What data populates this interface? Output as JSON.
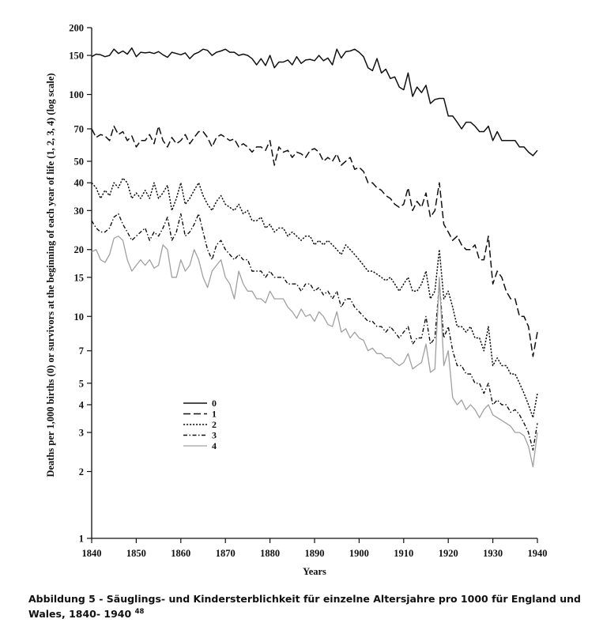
{
  "chart_data": {
    "type": "line",
    "xlabel": "Years",
    "ylabel": "Deaths per 1,000 births (0) or survivors at the beginning of each year of life (1, 2, 3, 4) (log scale)",
    "yscale": "log",
    "xlim": [
      1840,
      1940
    ],
    "ylim": [
      1,
      200
    ],
    "x_ticks": [
      "1840",
      "1850",
      "1860",
      "1870",
      "1880",
      "1890",
      "1900",
      "1910",
      "1920",
      "1930",
      "1940"
    ],
    "y_ticks": [
      "1",
      "2",
      "3",
      "4",
      "5",
      "7",
      "10",
      "15",
      "20",
      "30",
      "40",
      "50",
      "70",
      "100",
      "150",
      "200"
    ],
    "legend_position": "lower-left",
    "series": [
      {
        "name": "0",
        "style": "solid",
        "color": "#111111",
        "x": [
          1840,
          1841,
          1842,
          1843,
          1844,
          1845,
          1846,
          1847,
          1848,
          1849,
          1850,
          1851,
          1852,
          1853,
          1854,
          1855,
          1856,
          1857,
          1858,
          1859,
          1860,
          1861,
          1862,
          1863,
          1864,
          1865,
          1866,
          1867,
          1868,
          1869,
          1870,
          1871,
          1872,
          1873,
          1874,
          1875,
          1876,
          1877,
          1878,
          1879,
          1880,
          1881,
          1882,
          1883,
          1884,
          1885,
          1886,
          1887,
          1888,
          1889,
          1890,
          1891,
          1892,
          1893,
          1894,
          1895,
          1896,
          1897,
          1898,
          1899,
          1900,
          1901,
          1902,
          1903,
          1904,
          1905,
          1906,
          1907,
          1908,
          1909,
          1910,
          1911,
          1912,
          1913,
          1914,
          1915,
          1916,
          1917,
          1918,
          1919,
          1920,
          1921,
          1922,
          1923,
          1924,
          1925,
          1926,
          1927,
          1928,
          1929,
          1930,
          1931,
          1932,
          1933,
          1934,
          1935,
          1936,
          1937,
          1938,
          1939,
          1940
        ],
        "values": [
          148,
          152,
          151,
          148,
          150,
          160,
          153,
          157,
          152,
          162,
          148,
          155,
          154,
          155,
          153,
          156,
          151,
          147,
          155,
          153,
          151,
          154,
          145,
          152,
          155,
          160,
          158,
          150,
          155,
          157,
          160,
          155,
          155,
          150,
          152,
          150,
          145,
          136,
          145,
          135,
          150,
          132,
          140,
          140,
          143,
          136,
          148,
          138,
          143,
          144,
          142,
          150,
          142,
          146,
          136,
          160,
          146,
          156,
          157,
          160,
          155,
          148,
          132,
          128,
          145,
          125,
          130,
          118,
          120,
          108,
          105,
          125,
          98,
          108,
          102,
          110,
          91,
          95,
          96,
          96,
          80,
          80,
          75,
          70,
          75,
          75,
          72,
          68,
          68,
          72,
          62,
          68,
          62,
          62,
          62,
          62,
          58,
          58,
          55,
          53,
          56
        ]
      },
      {
        "name": "1",
        "style": "dashed",
        "color": "#111111",
        "x": [
          1840,
          1841,
          1842,
          1843,
          1844,
          1845,
          1846,
          1847,
          1848,
          1849,
          1850,
          1851,
          1852,
          1853,
          1854,
          1855,
          1856,
          1857,
          1858,
          1859,
          1860,
          1861,
          1862,
          1863,
          1864,
          1865,
          1866,
          1867,
          1868,
          1869,
          1870,
          1871,
          1872,
          1873,
          1874,
          1875,
          1876,
          1877,
          1878,
          1879,
          1880,
          1881,
          1882,
          1883,
          1884,
          1885,
          1886,
          1887,
          1888,
          1889,
          1890,
          1891,
          1892,
          1893,
          1894,
          1895,
          1896,
          1897,
          1898,
          1899,
          1900,
          1901,
          1902,
          1903,
          1904,
          1905,
          1906,
          1907,
          1908,
          1909,
          1910,
          1911,
          1912,
          1913,
          1914,
          1915,
          1916,
          1917,
          1918,
          1919,
          1920,
          1921,
          1922,
          1923,
          1924,
          1925,
          1926,
          1927,
          1928,
          1929,
          1930,
          1931,
          1932,
          1933,
          1934,
          1935,
          1936,
          1937,
          1938,
          1939,
          1940
        ],
        "values": [
          70,
          64,
          66,
          65,
          62,
          72,
          66,
          68,
          62,
          65,
          58,
          62,
          62,
          66,
          60,
          72,
          62,
          58,
          64,
          60,
          62,
          66,
          60,
          64,
          68,
          68,
          64,
          58,
          64,
          66,
          64,
          62,
          63,
          58,
          60,
          58,
          55,
          58,
          58,
          56,
          62,
          48,
          58,
          55,
          56,
          52,
          55,
          54,
          52,
          56,
          57,
          55,
          50,
          52,
          50,
          54,
          48,
          50,
          52,
          46,
          47,
          45,
          40,
          40,
          38,
          37,
          35,
          34,
          32,
          31,
          32,
          38,
          30,
          33,
          31,
          36,
          28,
          30,
          40,
          26,
          24,
          22,
          23,
          21,
          20,
          20,
          21,
          18,
          18,
          23,
          14,
          16,
          15,
          13,
          12,
          12,
          10,
          10,
          9,
          6.6,
          8.5
        ]
      },
      {
        "name": "2",
        "style": "dotted",
        "color": "#111111",
        "x": [
          1840,
          1841,
          1842,
          1843,
          1844,
          1845,
          1846,
          1847,
          1848,
          1849,
          1850,
          1851,
          1852,
          1853,
          1854,
          1855,
          1856,
          1857,
          1858,
          1859,
          1860,
          1861,
          1862,
          1863,
          1864,
          1865,
          1866,
          1867,
          1868,
          1869,
          1870,
          1871,
          1872,
          1873,
          1874,
          1875,
          1876,
          1877,
          1878,
          1879,
          1880,
          1881,
          1882,
          1883,
          1884,
          1885,
          1886,
          1887,
          1888,
          1889,
          1890,
          1891,
          1892,
          1893,
          1894,
          1895,
          1896,
          1897,
          1898,
          1899,
          1900,
          1901,
          1902,
          1903,
          1904,
          1905,
          1906,
          1907,
          1908,
          1909,
          1910,
          1911,
          1912,
          1913,
          1914,
          1915,
          1916,
          1917,
          1918,
          1919,
          1920,
          1921,
          1922,
          1923,
          1924,
          1925,
          1926,
          1927,
          1928,
          1929,
          1930,
          1931,
          1932,
          1933,
          1934,
          1935,
          1936,
          1937,
          1938,
          1939,
          1940
        ],
        "values": [
          40,
          38,
          34,
          37,
          35,
          40,
          38,
          42,
          40,
          34,
          36,
          34,
          37,
          34,
          40,
          34,
          36,
          39,
          30,
          34,
          40,
          32,
          34,
          37,
          40,
          35,
          32,
          30,
          33,
          35,
          32,
          31,
          30,
          32,
          29,
          30,
          27,
          27,
          28,
          25,
          26,
          24,
          25,
          25,
          23,
          24,
          23,
          22,
          23,
          23,
          21,
          22,
          21,
          22,
          21,
          20,
          19,
          21,
          20,
          19,
          18,
          17,
          16,
          16,
          15.5,
          15,
          14.5,
          15,
          14,
          13,
          14,
          15,
          13,
          13,
          14,
          16,
          12,
          13,
          20,
          12,
          13,
          11,
          9,
          9,
          8.5,
          9,
          8,
          8,
          7,
          9,
          6,
          6.5,
          6,
          6,
          5.5,
          5.5,
          5,
          4.5,
          4,
          3.5,
          4.5
        ]
      },
      {
        "name": "3",
        "style": "dash-dot",
        "color": "#111111",
        "x": [
          1840,
          1841,
          1842,
          1843,
          1844,
          1845,
          1846,
          1847,
          1848,
          1849,
          1850,
          1851,
          1852,
          1853,
          1854,
          1855,
          1856,
          1857,
          1858,
          1859,
          1860,
          1861,
          1862,
          1863,
          1864,
          1865,
          1866,
          1867,
          1868,
          1869,
          1870,
          1871,
          1872,
          1873,
          1874,
          1875,
          1876,
          1877,
          1878,
          1879,
          1880,
          1881,
          1882,
          1883,
          1884,
          1885,
          1886,
          1887,
          1888,
          1889,
          1890,
          1891,
          1892,
          1893,
          1894,
          1895,
          1896,
          1897,
          1898,
          1899,
          1900,
          1901,
          1902,
          1903,
          1904,
          1905,
          1906,
          1907,
          1908,
          1909,
          1910,
          1911,
          1912,
          1913,
          1914,
          1915,
          1916,
          1917,
          1918,
          1919,
          1920,
          1921,
          1922,
          1923,
          1924,
          1925,
          1926,
          1927,
          1928,
          1929,
          1930,
          1931,
          1932,
          1933,
          1934,
          1935,
          1936,
          1937,
          1938,
          1939,
          1940
        ],
        "values": [
          27,
          25,
          24,
          24,
          25,
          28,
          29,
          26,
          24,
          22,
          23,
          24,
          25,
          22,
          24,
          23,
          25,
          28,
          22,
          24,
          29,
          23,
          24,
          26,
          29,
          24,
          20,
          18,
          21,
          22,
          20,
          19,
          18,
          19,
          18,
          18,
          16,
          16,
          16,
          15,
          16,
          15,
          15,
          15,
          14,
          14,
          14,
          13,
          14,
          14,
          13,
          13.5,
          12.5,
          13,
          12,
          13,
          11,
          12,
          12,
          11,
          10.5,
          10,
          9.5,
          9.5,
          9,
          9,
          8.5,
          9,
          8.5,
          8,
          8.5,
          9,
          7.5,
          8,
          8,
          10,
          7.5,
          8,
          14,
          8,
          9,
          7,
          6,
          6,
          5.5,
          5.5,
          5,
          5,
          4.5,
          5,
          4,
          4.2,
          4,
          4,
          3.7,
          3.8,
          3.6,
          3.3,
          3,
          2.5,
          3.3
        ]
      },
      {
        "name": "4",
        "style": "solid-light",
        "color": "#a0a0a0",
        "x": [
          1840,
          1841,
          1842,
          1843,
          1844,
          1845,
          1846,
          1847,
          1848,
          1849,
          1850,
          1851,
          1852,
          1853,
          1854,
          1855,
          1856,
          1857,
          1858,
          1859,
          1860,
          1861,
          1862,
          1863,
          1864,
          1865,
          1866,
          1867,
          1868,
          1869,
          1870,
          1871,
          1872,
          1873,
          1874,
          1875,
          1876,
          1877,
          1878,
          1879,
          1880,
          1881,
          1882,
          1883,
          1884,
          1885,
          1886,
          1887,
          1888,
          1889,
          1890,
          1891,
          1892,
          1893,
          1894,
          1895,
          1896,
          1897,
          1898,
          1899,
          1900,
          1901,
          1902,
          1903,
          1904,
          1905,
          1906,
          1907,
          1908,
          1909,
          1910,
          1911,
          1912,
          1913,
          1914,
          1915,
          1916,
          1917,
          1918,
          1919,
          1920,
          1921,
          1922,
          1923,
          1924,
          1925,
          1926,
          1927,
          1928,
          1929,
          1930,
          1931,
          1932,
          1933,
          1934,
          1935,
          1936,
          1937,
          1938,
          1939,
          1940
        ],
        "values": [
          19.5,
          20,
          18,
          17.5,
          19,
          22.5,
          23,
          22,
          18,
          16,
          17,
          18,
          17,
          18,
          16.5,
          17,
          21,
          20,
          15,
          15,
          18,
          16,
          17,
          20,
          18,
          15,
          13.5,
          16,
          17,
          18,
          15,
          14,
          12,
          16,
          14,
          13,
          13,
          12,
          12,
          11.5,
          13,
          12,
          12,
          12,
          11,
          10.5,
          9.8,
          10.8,
          10,
          10.2,
          9.5,
          10.5,
          10,
          9.2,
          9,
          10.5,
          8.5,
          8.8,
          8,
          8.5,
          8,
          7.8,
          7,
          7.2,
          6.8,
          6.8,
          6.5,
          6.5,
          6.2,
          6,
          6.2,
          6.8,
          5.8,
          6,
          6.2,
          7.5,
          5.6,
          5.8,
          15,
          6,
          7,
          4.3,
          4,
          4.2,
          3.8,
          4,
          3.8,
          3.5,
          3.8,
          4,
          3.6,
          3.5,
          3.4,
          3.3,
          3.2,
          3,
          3,
          2.9,
          2.6,
          2.1,
          3
        ]
      }
    ]
  },
  "caption": {
    "text": "Abbildung 5 - Säuglings- und Kindersterblichkeit für einzelne Altersjahre pro 1000 für England und Wales, 1840- 1940",
    "footnote": "48"
  }
}
